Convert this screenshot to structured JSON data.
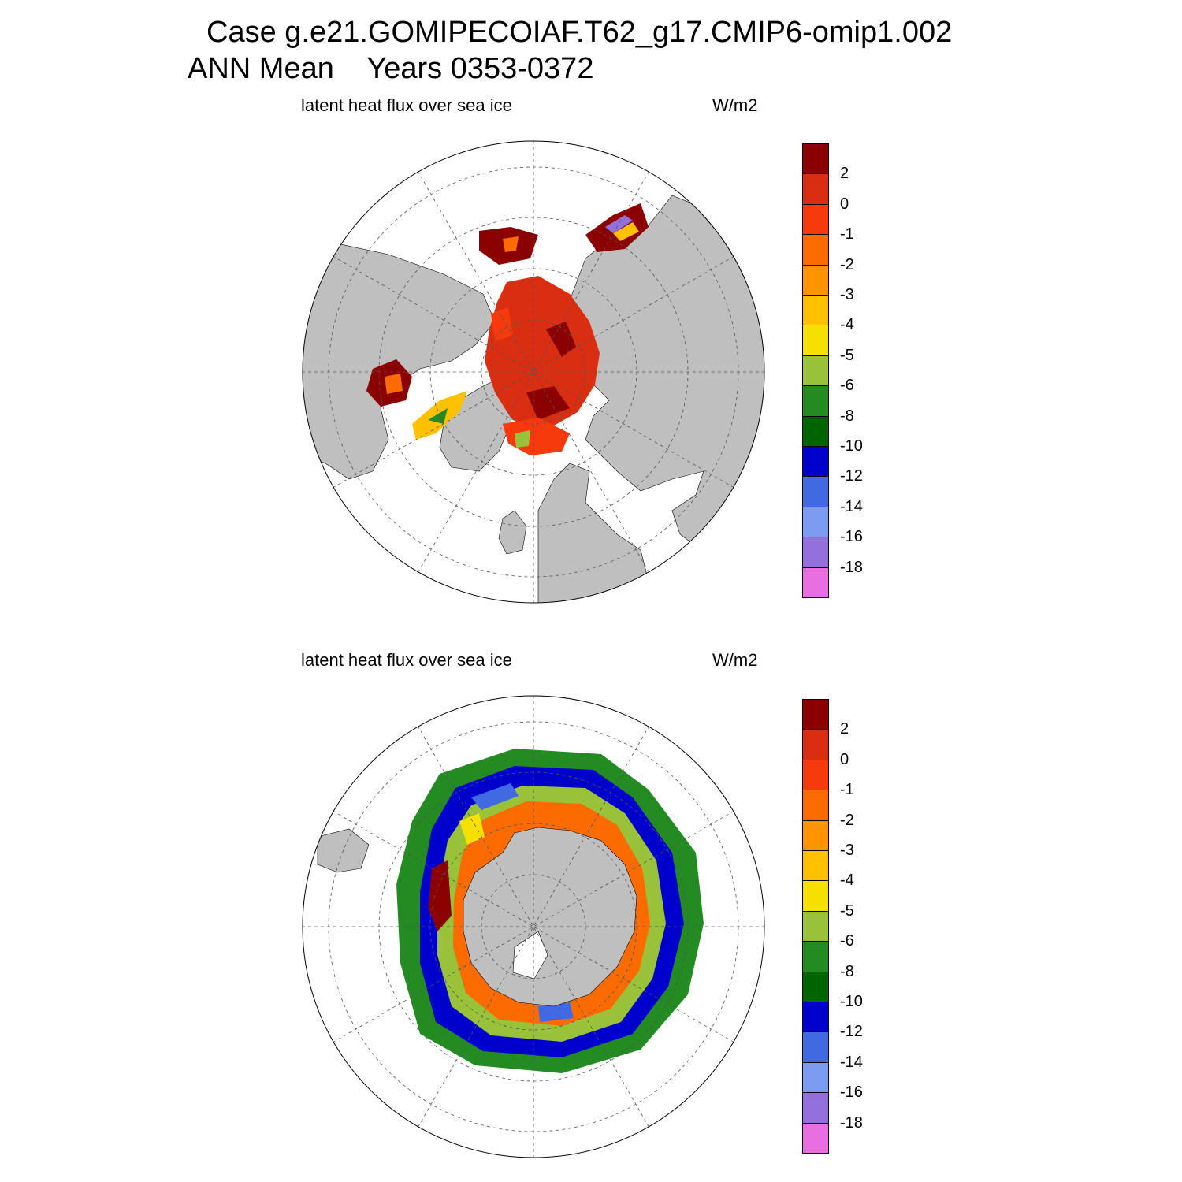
{
  "title": {
    "line1": "Case g.e21.GOMIPECOIAF.T62_g17.CMIP6-omip1.002",
    "line2": "ANN Mean    Years 0353-0372"
  },
  "panels": [
    {
      "id": "north",
      "variable": "latent heat flux over sea ice",
      "units": "W/m2",
      "hemisphere": "Northern"
    },
    {
      "id": "south",
      "variable": "latent heat flux over sea ice",
      "units": "W/m2",
      "hemisphere": "Southern"
    }
  ],
  "colorbar": {
    "levels": [
      "2",
      "0",
      "-1",
      "-2",
      "-3",
      "-4",
      "-5",
      "-6",
      "-8",
      "-10",
      "-12",
      "-14",
      "-16",
      "-18"
    ],
    "colors": [
      "#8b0000",
      "#d92e12",
      "#f73a0c",
      "#fb6b00",
      "#ff9300",
      "#ffc000",
      "#f6e000",
      "#99c13a",
      "#238b22",
      "#006400",
      "#0000cd",
      "#4169e1",
      "#7b9cf0",
      "#9370db",
      "#e86ee1"
    ]
  },
  "map_style": {
    "land": "#bfbfbf",
    "ocean": "#ffffff",
    "grid": "dashed"
  }
}
